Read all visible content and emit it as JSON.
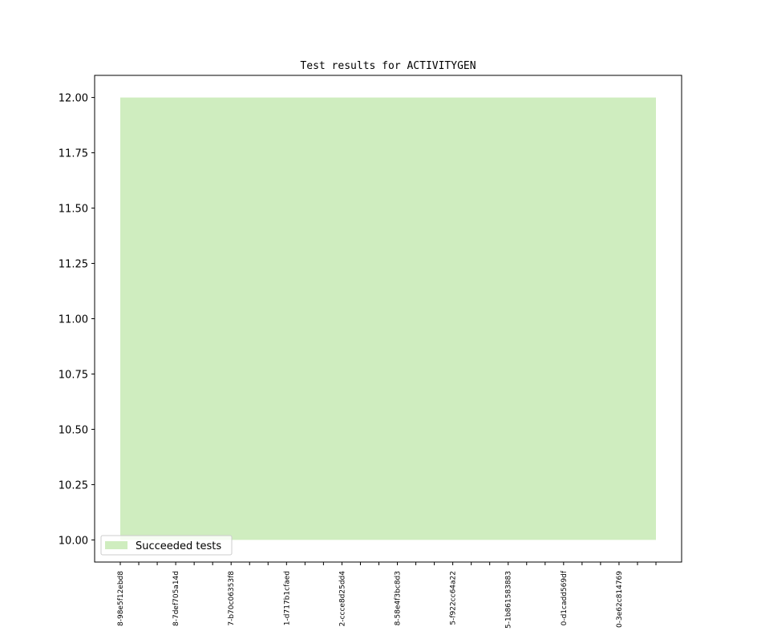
{
  "chart_data": {
    "type": "area",
    "title": "Test results for ACTIVITYGEN",
    "categories": [
      "8-98e5f12ebd8",
      null,
      null,
      "8-7def705a14d",
      null,
      null,
      "7-b70c06353f8",
      null,
      null,
      "1-d717b1cfaed",
      null,
      null,
      "2-ccce8d25dd4",
      null,
      null,
      "8-58e4f3bc8d3",
      null,
      null,
      "5-f922cc64a22",
      null,
      null,
      "5-1b861583883",
      null,
      null,
      "0-d1cadd569df",
      null,
      null,
      "0-3e62c814769",
      null,
      null
    ],
    "series": [
      {
        "name": "Succeeded tests",
        "color": "#cfedbf",
        "low": [
          10,
          10,
          10,
          10,
          10,
          10,
          10,
          10,
          10,
          10,
          10,
          10,
          10,
          10,
          10,
          10,
          10,
          10,
          10,
          10,
          10,
          10,
          10,
          10,
          10,
          10,
          10,
          10,
          10,
          10
        ],
        "values": [
          12,
          12,
          12,
          12,
          12,
          12,
          12,
          12,
          12,
          12,
          12,
          12,
          12,
          12,
          12,
          12,
          12,
          12,
          12,
          12,
          12,
          12,
          12,
          12,
          12,
          12,
          12,
          12,
          12,
          12
        ]
      }
    ],
    "ylim": [
      9.9,
      12.1
    ],
    "yticks": [
      {
        "value": 10,
        "label": "10.00"
      },
      {
        "value": 10.25,
        "label": "10.25"
      },
      {
        "value": 10.5,
        "label": "10.50"
      },
      {
        "value": 10.75,
        "label": "10.75"
      },
      {
        "value": 11,
        "label": "11.00"
      },
      {
        "value": 11.25,
        "label": "11.25"
      },
      {
        "value": 11.5,
        "label": "11.50"
      },
      {
        "value": 11.75,
        "label": "11.75"
      },
      {
        "value": 12,
        "label": "12.00"
      }
    ],
    "legend": "lower left",
    "grid": false
  }
}
